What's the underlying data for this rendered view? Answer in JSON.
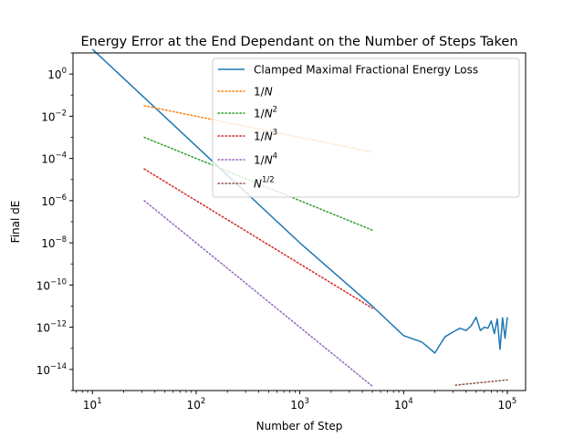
{
  "chart_data": {
    "type": "line",
    "title": "Energy Error at the End Dependant on the Number of Steps Taken",
    "xlabel": "Number of Step",
    "ylabel": "Final dE",
    "xscale": "log",
    "yscale": "log",
    "xlim": [
      6.5,
      150000
    ],
    "ylim": [
      1e-15,
      10.0
    ],
    "grid": false,
    "legend_position": "top-right",
    "x_ticks": [
      {
        "base": "10",
        "exp": "1",
        "value": 10
      },
      {
        "base": "10",
        "exp": "2",
        "value": 100
      },
      {
        "base": "10",
        "exp": "3",
        "value": 1000
      },
      {
        "base": "10",
        "exp": "4",
        "value": 10000
      },
      {
        "base": "10",
        "exp": "5",
        "value": 100000
      }
    ],
    "y_ticks": [
      {
        "base": "10",
        "exp": "0",
        "value": 1
      },
      {
        "base": "10",
        "exp": "−2",
        "value": 0.01
      },
      {
        "base": "10",
        "exp": "−4",
        "value": 0.0001
      },
      {
        "base": "10",
        "exp": "−6",
        "value": 1e-06
      },
      {
        "base": "10",
        "exp": "−8",
        "value": 1e-08
      },
      {
        "base": "10",
        "exp": "−10",
        "value": 1e-10
      },
      {
        "base": "10",
        "exp": "−12",
        "value": 1e-12
      },
      {
        "base": "10",
        "exp": "−14",
        "value": 1e-14
      }
    ],
    "series": [
      {
        "name": "Clamped Maximal Fractional Energy Loss",
        "color": "#1f77b4",
        "style": "solid",
        "x": [
          10,
          1000,
          5000,
          10000,
          15000,
          20000,
          25000,
          30000,
          35000,
          40000,
          45000,
          50000,
          55000,
          60000,
          65000,
          70000,
          75000,
          80000,
          85000,
          90000,
          95000,
          100000
        ],
        "y": [
          15,
          1e-08,
          1e-11,
          4e-13,
          2e-13,
          6e-14,
          3.5e-13,
          6e-13,
          9e-13,
          7e-13,
          1.2e-12,
          3e-12,
          7e-13,
          1e-12,
          9e-13,
          2e-12,
          5e-13,
          2.5e-12,
          9e-14,
          2.8e-12,
          3e-13,
          3e-12
        ]
      },
      {
        "name": "1/N",
        "label_base": "1/",
        "label_var": "N",
        "label_exp": "",
        "color": "#ff7f0e",
        "style": "dotted",
        "x": [
          31.6,
          5000
        ],
        "y": [
          0.0316,
          0.0002
        ]
      },
      {
        "name": "1/N^2",
        "label_base": "1/",
        "label_var": "N",
        "label_exp": "2",
        "color": "#2ca02c",
        "style": "dotted",
        "x": [
          31.6,
          5000
        ],
        "y": [
          0.001,
          4e-08
        ]
      },
      {
        "name": "1/N^3",
        "label_base": "1/",
        "label_var": "N",
        "label_exp": "3",
        "color": "#d62728",
        "style": "dotted",
        "x": [
          31.6,
          5000
        ],
        "y": [
          3.16e-05,
          8e-12
        ]
      },
      {
        "name": "1/N^4",
        "label_base": "1/",
        "label_var": "N",
        "label_exp": "4",
        "color": "#9467bd",
        "style": "dotted",
        "x": [
          31.6,
          5000
        ],
        "y": [
          1e-06,
          1.6e-15
        ]
      },
      {
        "name": "N^1/2",
        "label_base": "",
        "label_var": "N",
        "label_exp": "1/2",
        "color": "#8c564b",
        "style": "dotted",
        "x": [
          31623,
          100000
        ],
        "y": [
          1.8e-15,
          3.2e-15
        ]
      }
    ]
  }
}
